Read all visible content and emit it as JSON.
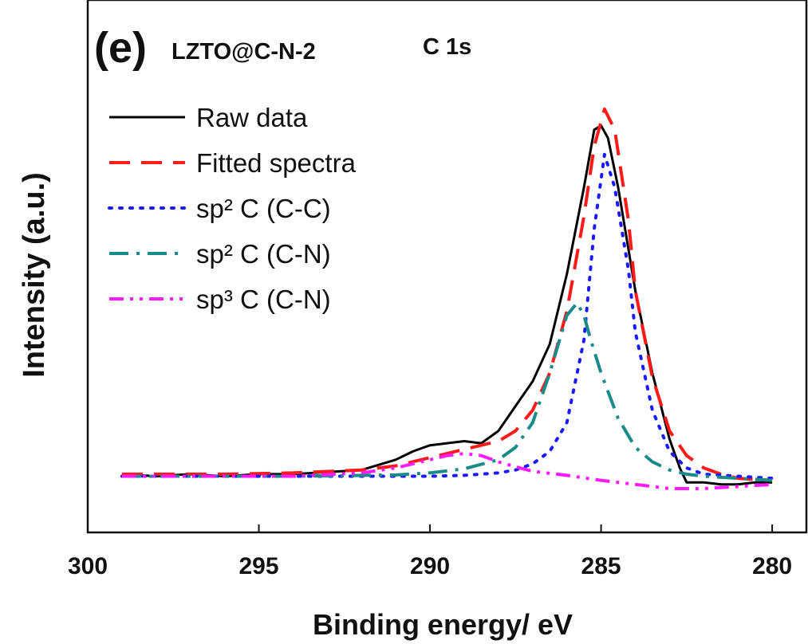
{
  "chart_data": {
    "type": "line",
    "panel_label": "(e)",
    "sample_label": "LZTO@C-N-2",
    "region_label": "C 1s",
    "xlabel": "Binding energy/ eV",
    "ylabel": "Intensity (a.u.)",
    "xlim": [
      300,
      279
    ],
    "x_reversed": true,
    "ylim": [
      -3,
      100
    ],
    "xticks": [
      "300",
      "295",
      "290",
      "285",
      "280"
    ],
    "grid": false,
    "legend_position": "top-left",
    "series": [
      {
        "name": "Raw data",
        "color": "#000000",
        "dash": "solid",
        "x": [
          299,
          298,
          297,
          296,
          295,
          294,
          293,
          292,
          291,
          290.5,
          290,
          289.5,
          289,
          288.5,
          288,
          287.5,
          287,
          286.5,
          286,
          285.5,
          285.2,
          285.0,
          284.8,
          284.5,
          284,
          283.5,
          283,
          282.7,
          282.5,
          282,
          281.5,
          281,
          280.5,
          280
        ],
        "y": [
          0.5,
          0.0,
          0.5,
          0.0,
          0.5,
          0.5,
          1.0,
          1.5,
          4.0,
          6.0,
          7.5,
          8.0,
          8.5,
          8.0,
          11.0,
          17.0,
          23.0,
          32.0,
          49.0,
          70.0,
          84.0,
          85.0,
          82.0,
          70.0,
          45.0,
          25.0,
          9.0,
          2.0,
          -1.5,
          -1.5,
          -2.0,
          -2.0,
          -1.5,
          -1.5
        ]
      },
      {
        "name": "Fitted spectra",
        "color": "#ff1a1a",
        "dash": "dashed",
        "x": [
          299,
          296,
          294,
          292,
          291,
          290,
          289,
          288,
          287.5,
          287,
          286.5,
          286,
          285.5,
          285.2,
          284.9,
          284.6,
          284.2,
          284,
          283.5,
          283,
          282.5,
          282,
          281.5,
          281,
          280.5,
          280
        ],
        "y": [
          0.5,
          0.5,
          0.8,
          1.5,
          2.5,
          4.5,
          6.5,
          8.5,
          11.0,
          16.0,
          25.0,
          40.0,
          63.0,
          80.0,
          89.0,
          84.0,
          62.0,
          45.0,
          24.0,
          11.0,
          5.0,
          2.0,
          0.5,
          -0.5,
          -0.8,
          -1.0
        ]
      },
      {
        "name": "sp² C (C-C)",
        "color": "#1a1aff",
        "dash": "dotted",
        "x": [
          299,
          294,
          290,
          289,
          288,
          287.5,
          287,
          286.5,
          286,
          285.5,
          285.2,
          284.9,
          284.6,
          284.2,
          284,
          283.5,
          283,
          282.5,
          282,
          281,
          280
        ],
        "y": [
          0.0,
          0.0,
          0.0,
          0.2,
          0.8,
          1.5,
          3.0,
          6.0,
          13.0,
          33.0,
          60.0,
          78.0,
          70.0,
          50.0,
          35.0,
          16.0,
          6.0,
          2.0,
          0.5,
          0.0,
          -0.5
        ]
      },
      {
        "name": "sp² C (C-N)",
        "color": "#1a8a8a",
        "dash": "dashdot",
        "x": [
          299,
          294,
          291,
          290,
          289,
          288,
          287.5,
          287,
          286.5,
          286,
          285.7,
          285.5,
          285.3,
          285,
          284.5,
          284,
          283.5,
          283,
          282.5,
          282,
          281,
          280
        ],
        "y": [
          0.0,
          0.0,
          0.3,
          0.8,
          1.8,
          4.0,
          7.0,
          13.0,
          25.0,
          39.0,
          42.0,
          39.0,
          33.0,
          25.0,
          14.0,
          7.0,
          3.5,
          1.5,
          0.5,
          0.0,
          -0.5,
          -1.0
        ]
      },
      {
        "name": "sp³ C (C-N)",
        "color": "#ff1aff",
        "dash": "dashdotdot",
        "x": [
          299,
          294,
          292,
          291,
          290,
          289.5,
          289,
          288.5,
          288,
          287.5,
          287,
          286,
          285,
          284,
          283,
          282,
          281,
          280
        ],
        "y": [
          0.0,
          0.0,
          0.8,
          2.0,
          4.0,
          5.0,
          5.5,
          5.0,
          3.5,
          2.3,
          1.2,
          0.2,
          -1.0,
          -2.0,
          -3.0,
          -3.0,
          -2.5,
          -2.0
        ]
      }
    ]
  }
}
